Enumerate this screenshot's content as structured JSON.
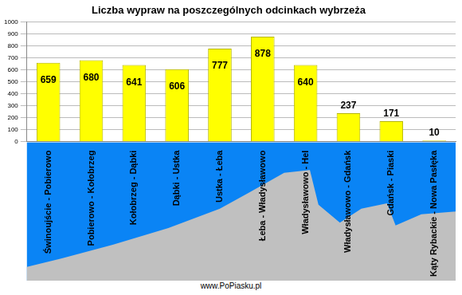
{
  "chart_data": {
    "type": "bar",
    "title": "Liczba wypraw na poszczególnych odcinkach wybrzeża",
    "categories": [
      "Świnoujście - Pobierowo",
      "Pobierowo - Kołobrzeg",
      "Kołobrzeg - Dąbki",
      "Dąbki - Ustka",
      "Ustka - Łeba",
      "Łeba - Władysławowo",
      "Władysławowo - Hel",
      "Władysławowo - Gdańsk",
      "Gdańsk - Piaski",
      "Kąty Rybackie - Nowa Pasłęka"
    ],
    "values": [
      659,
      680,
      641,
      606,
      777,
      878,
      640,
      237,
      171,
      10
    ],
    "color": "#ffff00",
    "ylim": [
      0,
      1000
    ],
    "yticks": [
      0,
      100,
      200,
      300,
      400,
      500,
      600,
      700,
      800,
      900,
      1000
    ],
    "grid": true,
    "data_labels": true,
    "annotations": [
      "www.PoPiasku.pl"
    ]
  }
}
